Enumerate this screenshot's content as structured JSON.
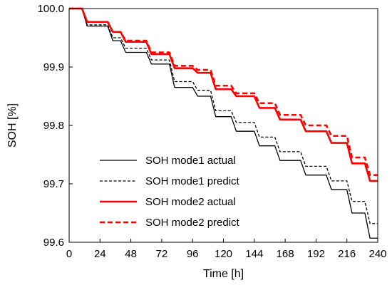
{
  "chart_data": {
    "type": "line",
    "title": "",
    "xlabel": "Time [h]",
    "ylabel": "SOH [%]",
    "xlim": [
      0,
      240
    ],
    "ylim": [
      99.6,
      100.0
    ],
    "xticks": [
      0,
      24,
      48,
      72,
      96,
      120,
      144,
      168,
      192,
      216,
      240
    ],
    "yticks": [
      99.6,
      99.7,
      99.8,
      99.9,
      100.0
    ],
    "ytick_labels": [
      "99.6",
      "99.7",
      "99.8",
      "99.9",
      "100.0"
    ],
    "grid": false,
    "legend_position": "bottom-left",
    "series": [
      {
        "name": "SOH mode1 actual",
        "color": "#000000",
        "style": "solid",
        "width": "thin",
        "x": [
          0,
          10,
          14,
          30,
          34,
          40,
          44,
          60,
          64,
          78,
          82,
          96,
          100,
          110,
          114,
          126,
          130,
          144,
          148,
          160,
          164,
          180,
          184,
          200,
          204,
          216,
          220,
          230,
          234,
          240
        ],
        "y": [
          100.0,
          100.0,
          99.97,
          99.97,
          99.945,
          99.945,
          99.925,
          99.925,
          99.905,
          99.905,
          99.865,
          99.865,
          99.85,
          99.85,
          99.815,
          99.815,
          99.79,
          99.79,
          99.765,
          99.765,
          99.74,
          99.74,
          99.715,
          99.715,
          99.69,
          99.69,
          99.65,
          99.65,
          99.607,
          99.607
        ]
      },
      {
        "name": "SOH mode1 predict",
        "color": "#000000",
        "style": "dashed",
        "width": "thin",
        "x": [
          0,
          10,
          14,
          30,
          34,
          40,
          44,
          60,
          64,
          78,
          82,
          96,
          100,
          110,
          114,
          126,
          130,
          144,
          148,
          160,
          164,
          180,
          184,
          200,
          204,
          216,
          220,
          230,
          234,
          240
        ],
        "y": [
          100.0,
          100.0,
          99.972,
          99.972,
          99.95,
          99.95,
          99.932,
          99.932,
          99.912,
          99.912,
          99.875,
          99.875,
          99.86,
          99.86,
          99.825,
          99.825,
          99.805,
          99.805,
          99.78,
          99.78,
          99.755,
          99.755,
          99.73,
          99.73,
          99.705,
          99.705,
          99.67,
          99.67,
          99.632,
          99.632
        ]
      },
      {
        "name": "SOH mode2 actual",
        "color": "#ff0000",
        "style": "solid",
        "width": "thick",
        "x": [
          0,
          10,
          14,
          30,
          34,
          40,
          44,
          60,
          64,
          78,
          82,
          96,
          100,
          110,
          114,
          126,
          130,
          144,
          148,
          160,
          164,
          180,
          184,
          200,
          204,
          216,
          220,
          230,
          234,
          240
        ],
        "y": [
          100.0,
          100.0,
          99.977,
          99.977,
          99.96,
          99.96,
          99.943,
          99.943,
          99.922,
          99.922,
          99.898,
          99.898,
          99.89,
          99.89,
          99.862,
          99.862,
          99.85,
          99.85,
          99.83,
          99.83,
          99.81,
          99.81,
          99.79,
          99.79,
          99.77,
          99.77,
          99.735,
          99.735,
          99.705,
          99.705
        ]
      },
      {
        "name": "SOH mode2 predict",
        "color": "#ff0000",
        "style": "dashed",
        "width": "thick",
        "x": [
          0,
          10,
          14,
          30,
          34,
          40,
          44,
          60,
          64,
          78,
          82,
          96,
          100,
          110,
          114,
          126,
          130,
          144,
          148,
          160,
          164,
          180,
          184,
          200,
          204,
          216,
          220,
          230,
          234,
          240
        ],
        "y": [
          100.0,
          100.0,
          99.977,
          99.977,
          99.96,
          99.96,
          99.945,
          99.945,
          99.925,
          99.925,
          99.902,
          99.902,
          99.895,
          99.895,
          99.868,
          99.868,
          99.855,
          99.855,
          99.838,
          99.838,
          99.818,
          99.818,
          99.8,
          99.8,
          99.782,
          99.782,
          99.745,
          99.745,
          99.715,
          99.715
        ]
      }
    ]
  }
}
